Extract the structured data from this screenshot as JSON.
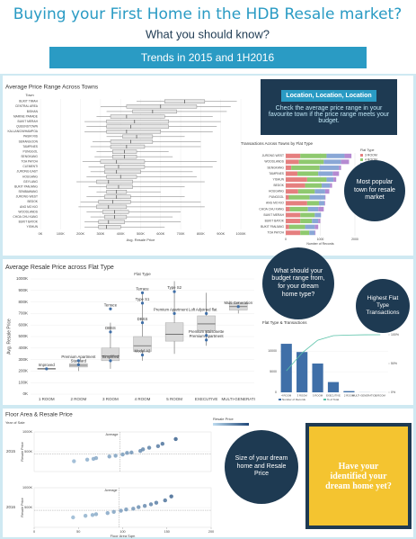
{
  "header": {
    "title": "Buying your First Home in the HDB Resale market?",
    "subtitle": "What you should know?",
    "banner": "Trends in 2015 and 1H2016"
  },
  "callouts": [
    {
      "title": "Location, Location, Location",
      "text": "Check the average price range in your favourite town if the price range meets your budget."
    },
    {
      "text": "Most popular town for resale market"
    },
    {
      "text": "What should your budget range from, for your dream home type?"
    },
    {
      "text": "Highest Flat Type Transactions"
    },
    {
      "text": "Size of your dream home and Resale Price"
    },
    {
      "text": "Have your identified your dream home yet?"
    }
  ],
  "chart_data": [
    {
      "type": "hbox",
      "title": "Average Price Range Across Towns",
      "ylabel": "Town",
      "xlabel": "Avg. Resale Price",
      "categories": [
        "BUKIT TIMAH",
        "CENTRAL AREA",
        "BISHAN",
        "MARINE PARADE",
        "BUKIT MERAH",
        "QUEENSTOWN",
        "KALLANG/WHAMPOA",
        "PASIR RIS",
        "SERANGOON",
        "TAMPINES",
        "PUNGGOL",
        "SENGKANG",
        "TOA PAYOH",
        "CLEMENTI",
        "JURONG EAST",
        "HOUGANG",
        "GEYLANG",
        "BUKIT PANJANG",
        "SEMBAWANG",
        "JURONG WEST",
        "BEDOK",
        "ANG MO KIO",
        "WOODLANDS",
        "CHOA CHU KANG",
        "BUKIT BATOK",
        "YISHUN"
      ],
      "low": [
        480,
        300,
        330,
        280,
        220,
        230,
        220,
        330,
        260,
        250,
        280,
        270,
        210,
        240,
        250,
        230,
        180,
        240,
        280,
        230,
        200,
        190,
        230,
        250,
        220,
        220
      ],
      "q1": [
        620,
        430,
        460,
        350,
        330,
        330,
        330,
        410,
        350,
        350,
        360,
        360,
        300,
        320,
        320,
        330,
        280,
        330,
        330,
        320,
        290,
        280,
        310,
        320,
        290,
        290
      ],
      "median": [
        720,
        600,
        560,
        430,
        470,
        450,
        430,
        480,
        450,
        430,
        420,
        420,
        380,
        390,
        380,
        400,
        340,
        390,
        380,
        380,
        360,
        340,
        370,
        370,
        340,
        330
      ],
      "q3": [
        820,
        780,
        680,
        620,
        640,
        640,
        600,
        560,
        560,
        520,
        480,
        480,
        520,
        520,
        500,
        480,
        460,
        460,
        430,
        450,
        450,
        430,
        440,
        430,
        420,
        400
      ],
      "high": [
        980,
        950,
        930,
        860,
        900,
        880,
        860,
        720,
        800,
        800,
        640,
        660,
        880,
        860,
        760,
        780,
        820,
        720,
        600,
        720,
        800,
        820,
        700,
        660,
        700,
        620
      ],
      "color": "#777777",
      "xlim": [
        0,
        1000
      ],
      "xticks": [
        {
          "value": 0,
          "label": "0K"
        },
        {
          "value": 100,
          "label": "100K"
        },
        {
          "value": 200,
          "label": "200K"
        },
        {
          "value": 300,
          "label": "300K"
        },
        {
          "value": 400,
          "label": "400K"
        },
        {
          "value": 500,
          "label": "500K"
        },
        {
          "value": 600,
          "label": "600K"
        },
        {
          "value": 700,
          "label": "700K"
        },
        {
          "value": 800,
          "label": "800K"
        },
        {
          "value": 900,
          "label": "900K"
        },
        {
          "value": 1000,
          "label": "1000K"
        }
      ],
      "grid": true
    },
    {
      "type": "stacked_hbar",
      "title": "Transactions Across Towns by Flat Type",
      "xlabel": "Number of Records",
      "legend_title": "Flat Type",
      "categories": [
        "JURONG WEST",
        "WOODLANDS",
        "SENGKANG",
        "TAMPINES",
        "YISHUN",
        "BEDOK",
        "HOUGANG",
        "PUNGGOL",
        "ANG MO KIO",
        "CHOA CHU KANG",
        "BUKIT MERAH",
        "BUKIT BATOK",
        "BUKIT PANJANG",
        "TOA PAYOH"
      ],
      "series": [
        {
          "name": "3 ROOM",
          "color": "#e57f7f",
          "values": [
            420,
            380,
            160,
            340,
            620,
            560,
            360,
            90,
            620,
            120,
            420,
            420,
            100,
            420
          ]
        },
        {
          "name": "4 ROOM",
          "color": "#8fc96f",
          "values": [
            760,
            720,
            820,
            600,
            560,
            480,
            480,
            600,
            340,
            520,
            420,
            340,
            460,
            260
          ]
        },
        {
          "name": "5 ROOM",
          "color": "#8aa7d6",
          "values": [
            520,
            500,
            560,
            420,
            200,
            240,
            300,
            440,
            160,
            300,
            180,
            180,
            280,
            160
          ]
        },
        {
          "name": "EXECUTIVE",
          "color": "#b58ad1",
          "values": [
            200,
            230,
            60,
            180,
            80,
            60,
            120,
            20,
            20,
            160,
            0,
            60,
            100,
            20
          ]
        }
      ],
      "xlim": [
        0,
        2000
      ],
      "xticks": [
        0,
        1000,
        2000
      ],
      "grid": true
    },
    {
      "type": "vbox",
      "title": "Average Resale Price across Flat Type",
      "ylabel": "Avg. Resale Price",
      "xlabel": "Flat Type",
      "categories": [
        "1 ROOM",
        "2 ROOM",
        "3 ROOM",
        "4 ROOM",
        "5 ROOM",
        "EXECUTIVE",
        "MULTI-GENERATI"
      ],
      "low": [
        210,
        200,
        220,
        290,
        350,
        420,
        700
      ],
      "q1": [
        215,
        235,
        290,
        370,
        460,
        550,
        730
      ],
      "median": [
        220,
        250,
        330,
        420,
        520,
        610,
        760
      ],
      "q3": [
        225,
        265,
        400,
        500,
        620,
        680,
        790
      ],
      "high": [
        230,
        300,
        620,
        880,
        980,
        880,
        800
      ],
      "color": "#d9d9d9",
      "points": [
        {
          "label": "Improved",
          "category": 0,
          "value": 220
        },
        {
          "label": "Standard",
          "category": 1,
          "value": 255
        },
        {
          "label": "Premium Apartment",
          "category": 1,
          "value": 290
        },
        {
          "label": "Simplified",
          "category": 2,
          "value": 290
        },
        {
          "label": "DBSS",
          "category": 2,
          "value": 540
        },
        {
          "label": "Terrace",
          "category": 2,
          "value": 740
        },
        {
          "label": "Model A2",
          "category": 3,
          "value": 340
        },
        {
          "label": "DBSS",
          "category": 3,
          "value": 620
        },
        {
          "label": "Type S1",
          "category": 3,
          "value": 790
        },
        {
          "label": "Terrace",
          "category": 3,
          "value": 880
        },
        {
          "label": "Premium Apartment Loft",
          "category": 4,
          "value": 700
        },
        {
          "label": "Type S2",
          "category": 4,
          "value": 890
        },
        {
          "label": "Premium Apartment",
          "category": 5,
          "value": 470
        },
        {
          "label": "Premium Maisonette",
          "category": 5,
          "value": 510
        },
        {
          "label": "Adjoined flat",
          "category": 5,
          "value": 700
        },
        {
          "label": "Multi Generation",
          "category": 6,
          "value": 760
        }
      ],
      "ylim": [
        0,
        1000
      ],
      "yticks": [
        {
          "value": 0,
          "label": "0K"
        },
        {
          "value": 100,
          "label": "100K"
        },
        {
          "value": 200,
          "label": "200K"
        },
        {
          "value": 300,
          "label": "300K"
        },
        {
          "value": 400,
          "label": "400K"
        },
        {
          "value": 500,
          "label": "500K"
        },
        {
          "value": 600,
          "label": "600K"
        },
        {
          "value": 700,
          "label": "700K"
        },
        {
          "value": 800,
          "label": "800K"
        },
        {
          "value": 900,
          "label": "900K"
        },
        {
          "value": 1000,
          "label": "1000K"
        }
      ],
      "grid": true
    },
    {
      "type": "pareto",
      "title": "Flat Type & Transactions",
      "categories": [
        "4 ROOM",
        "3 ROOM",
        "5 ROOM",
        "EXECUTIVE",
        "2 ROOM",
        "MULTI-GENERATION",
        "1 ROOM"
      ],
      "series": [
        {
          "name": "Number of Records",
          "color": "#3f6fa8",
          "values": [
            11800,
            9800,
            7000,
            2500,
            300,
            20,
            10
          ]
        },
        {
          "name": "% of Total",
          "color": "#59c2a8",
          "axis": "y2",
          "values": [
            37.3,
            68.3,
            90.5,
            98.4,
            99.4,
            99.9,
            100
          ]
        }
      ],
      "ylim": [
        0,
        14000
      ],
      "yticks": [
        0,
        5000,
        10000
      ],
      "y2lim": [
        0,
        100
      ],
      "y2ticks": [
        {
          "value": 0,
          "label": "0%"
        },
        {
          "value": 50,
          "label": "50%"
        },
        {
          "value": 100,
          "label": "100%"
        }
      ],
      "grid": true
    },
    {
      "type": "scatter",
      "title": "Floor Area & Resale Price",
      "facet_title": "Year of Sale",
      "facet": "2015",
      "ylabel": "Resale Price",
      "legend_title": "Resale Price",
      "avg_label": "Average",
      "x": [
        45,
        60,
        67,
        70,
        85,
        92,
        100,
        105,
        110,
        120,
        123,
        130,
        140,
        145,
        160
      ],
      "y": [
        260,
        300,
        320,
        340,
        380,
        400,
        430,
        470,
        480,
        520,
        560,
        600,
        640,
        700,
        820
      ],
      "xlim": [
        0,
        200
      ],
      "ylim": [
        0,
        1000
      ],
      "yticks": [
        {
          "value": 500,
          "label": "500K"
        },
        {
          "value": 1000,
          "label": "1000K"
        }
      ],
      "average_x": 97,
      "average_y": 440
    },
    {
      "type": "scatter",
      "facet": "2016",
      "ylabel": "Resale Price",
      "xlabel": "Floor Area Sqm",
      "avg_label": "Average",
      "x": [
        44,
        58,
        66,
        70,
        83,
        90,
        98,
        104,
        112,
        118,
        125,
        132,
        138,
        148,
        155
      ],
      "y": [
        250,
        290,
        310,
        330,
        360,
        390,
        420,
        450,
        470,
        510,
        540,
        580,
        620,
        680,
        780
      ],
      "xlim": [
        0,
        200
      ],
      "ylim": [
        0,
        1000
      ],
      "xticks": [
        0,
        50,
        100,
        150,
        200
      ],
      "yticks": [
        {
          "value": 500,
          "label": "500K"
        },
        {
          "value": 1000,
          "label": "1000K"
        }
      ],
      "average_x": 96,
      "average_y": 430
    }
  ]
}
